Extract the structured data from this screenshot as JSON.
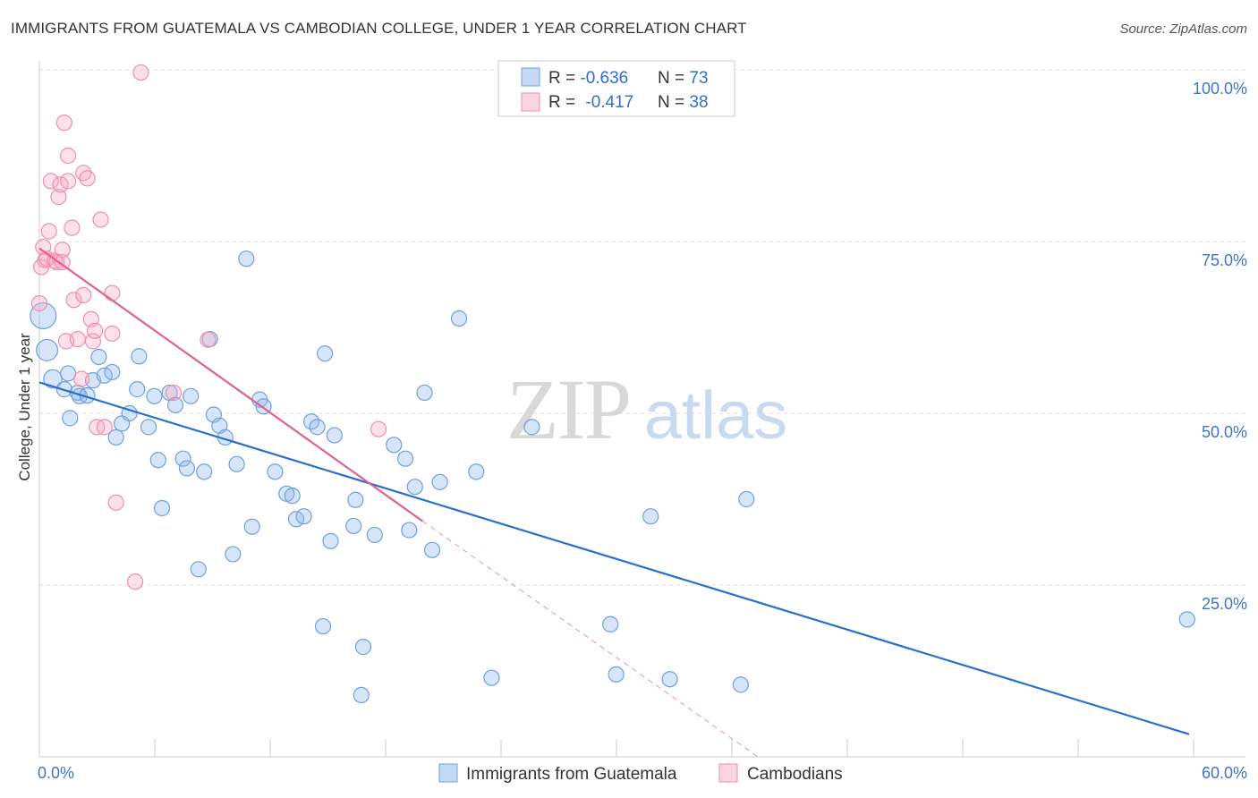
{
  "title": "IMMIGRANTS FROM GUATEMALA VS CAMBODIAN COLLEGE, UNDER 1 YEAR CORRELATION CHART",
  "source": "Source: ZipAtlas.com",
  "watermark": {
    "zip": "ZIP",
    "atlas": "atlas"
  },
  "colors": {
    "blue": "#6fa0e0",
    "blue_fill": "rgba(140,180,235,0.35)",
    "blue_line": "#2a6fcd",
    "pink": "#ee8fb0",
    "pink_fill": "rgba(245,170,195,0.35)",
    "pink_line": "#e0628f",
    "grid": "#dcdcdc",
    "tick_text": "#3d74c6"
  },
  "legend": {
    "rows": [
      {
        "r_label": "R = ",
        "r_value": "-0.636",
        "n_label": "N = ",
        "n_value": "73"
      },
      {
        "r_label": "R = ",
        "r_value": "-0.417",
        "n_label": "N = ",
        "n_value": "38"
      }
    ]
  },
  "bottom_legend": [
    "Immigrants from Guatemala",
    "Cambodians"
  ],
  "chart_data": {
    "type": "scatter",
    "title": "IMMIGRANTS FROM GUATEMALA VS CAMBODIAN COLLEGE, UNDER 1 YEAR CORRELATION CHART",
    "xlabel": "",
    "ylabel": "College, Under 1 year",
    "xlim": [
      0,
      60
    ],
    "ylim": [
      0,
      100
    ],
    "x_tick_labels": [
      "0.0%",
      "60.0%"
    ],
    "y_ticks": [
      25,
      50,
      75,
      100
    ],
    "y_tick_labels": [
      "25.0%",
      "50.0%",
      "75.0%",
      "100.0%"
    ],
    "grid": true,
    "series": [
      {
        "name": "Immigrants from Guatemala",
        "color": "#6fa0e0",
        "r": -0.636,
        "n": 73,
        "trend": {
          "x": [
            0,
            60
          ],
          "y": [
            54.5,
            3.3
          ]
        },
        "points": [
          [
            0.2,
            64.2,
            1.7
          ],
          [
            0.4,
            59.2,
            1.4
          ],
          [
            0.7,
            55.0,
            1.2
          ],
          [
            1.3,
            53.5,
            1.0
          ],
          [
            1.5,
            55.8,
            1.0
          ],
          [
            1.6,
            49.3,
            1.0
          ],
          [
            2.0,
            53.0,
            1.0
          ],
          [
            2.1,
            52.5,
            1.0
          ],
          [
            2.5,
            52.6,
            1.0
          ],
          [
            2.8,
            54.8,
            1.0
          ],
          [
            3.1,
            58.2,
            1.0
          ],
          [
            3.4,
            55.5,
            1.0
          ],
          [
            3.8,
            56.0,
            1.0
          ],
          [
            4.0,
            46.5,
            1.0
          ],
          [
            4.3,
            48.5,
            1.0
          ],
          [
            4.7,
            50.0,
            1.0
          ],
          [
            5.1,
            53.5,
            1.0
          ],
          [
            5.2,
            58.3,
            1.0
          ],
          [
            5.7,
            48.0,
            1.0
          ],
          [
            6.0,
            52.5,
            1.0
          ],
          [
            6.2,
            43.2,
            1.0
          ],
          [
            6.4,
            36.2,
            1.0
          ],
          [
            6.8,
            53.0,
            1.0
          ],
          [
            7.1,
            51.2,
            1.0
          ],
          [
            7.5,
            43.4,
            1.0
          ],
          [
            7.7,
            42.0,
            1.0
          ],
          [
            7.9,
            52.5,
            1.0
          ],
          [
            8.3,
            27.3,
            1.0
          ],
          [
            8.6,
            41.5,
            1.0
          ],
          [
            8.9,
            60.8,
            1.0
          ],
          [
            9.1,
            49.8,
            1.0
          ],
          [
            9.4,
            48.2,
            1.0
          ],
          [
            9.7,
            46.5,
            1.0
          ],
          [
            10.1,
            29.5,
            1.0
          ],
          [
            10.3,
            42.6,
            1.0
          ],
          [
            10.8,
            72.5,
            1.0
          ],
          [
            11.1,
            33.5,
            1.0
          ],
          [
            11.5,
            52.0,
            1.0
          ],
          [
            11.7,
            51.0,
            1.0
          ],
          [
            12.3,
            41.5,
            1.0
          ],
          [
            12.9,
            38.3,
            1.0
          ],
          [
            13.2,
            38.0,
            1.0
          ],
          [
            13.4,
            34.6,
            1.0
          ],
          [
            13.8,
            35.0,
            1.0
          ],
          [
            14.2,
            48.8,
            1.0
          ],
          [
            14.5,
            48.0,
            1.0
          ],
          [
            14.8,
            19.0,
            1.0
          ],
          [
            14.9,
            58.7,
            1.0
          ],
          [
            15.2,
            31.4,
            1.0
          ],
          [
            15.4,
            46.8,
            1.0
          ],
          [
            16.4,
            33.6,
            1.0
          ],
          [
            16.5,
            37.4,
            1.0
          ],
          [
            16.8,
            9.0,
            1.0
          ],
          [
            16.9,
            16.0,
            1.0
          ],
          [
            17.5,
            32.3,
            1.0
          ],
          [
            18.5,
            45.4,
            1.0
          ],
          [
            19.1,
            43.4,
            1.0
          ],
          [
            19.3,
            33.0,
            1.0
          ],
          [
            19.6,
            39.3,
            1.0
          ],
          [
            20.1,
            53.0,
            1.0
          ],
          [
            20.5,
            30.1,
            1.0
          ],
          [
            20.9,
            40.0,
            1.0
          ],
          [
            21.9,
            63.8,
            1.0
          ],
          [
            22.8,
            41.5,
            1.0
          ],
          [
            23.6,
            11.5,
            1.0
          ],
          [
            25.7,
            48.0,
            1.0
          ],
          [
            29.8,
            19.3,
            1.0
          ],
          [
            30.1,
            12.0,
            1.0
          ],
          [
            31.9,
            35.0,
            1.0
          ],
          [
            32.9,
            11.3,
            1.0
          ],
          [
            36.6,
            10.5,
            1.0
          ],
          [
            36.9,
            37.5,
            1.0
          ],
          [
            59.9,
            20.0,
            1.0
          ]
        ]
      },
      {
        "name": "Cambodians",
        "color": "#ee8fb0",
        "r": -0.417,
        "n": 38,
        "trend": {
          "x": [
            0,
            20
          ],
          "y": [
            74.0,
            34.3
          ]
        },
        "trend_dashed": {
          "x": [
            20,
            37.5
          ],
          "y": [
            34.3,
            0
          ]
        },
        "points": [
          [
            0.0,
            66.0,
            1.0
          ],
          [
            0.1,
            71.3,
            1.0
          ],
          [
            0.2,
            74.2,
            1.0
          ],
          [
            0.3,
            72.3,
            1.0
          ],
          [
            0.4,
            72.5,
            1.0
          ],
          [
            0.5,
            76.5,
            1.0
          ],
          [
            0.6,
            83.8,
            1.0
          ],
          [
            0.8,
            72.2,
            1.0
          ],
          [
            0.9,
            72.0,
            1.0
          ],
          [
            1.0,
            81.5,
            1.0
          ],
          [
            1.1,
            83.3,
            1.0
          ],
          [
            1.2,
            73.8,
            1.0
          ],
          [
            1.2,
            72.0,
            1.0
          ],
          [
            1.3,
            92.3,
            1.0
          ],
          [
            1.4,
            60.5,
            1.0
          ],
          [
            1.5,
            83.8,
            1.0
          ],
          [
            1.5,
            87.5,
            1.0
          ],
          [
            1.7,
            77.0,
            1.0
          ],
          [
            1.8,
            66.5,
            1.0
          ],
          [
            2.0,
            60.8,
            1.0
          ],
          [
            2.2,
            55.0,
            1.0
          ],
          [
            2.3,
            67.2,
            1.0
          ],
          [
            2.3,
            85.0,
            1.0
          ],
          [
            2.5,
            84.2,
            1.0
          ],
          [
            2.7,
            63.7,
            1.0
          ],
          [
            2.8,
            60.5,
            1.0
          ],
          [
            2.9,
            62.0,
            1.0
          ],
          [
            3.0,
            48.0,
            1.0
          ],
          [
            3.2,
            78.2,
            1.0
          ],
          [
            3.4,
            48.0,
            1.0
          ],
          [
            3.8,
            67.5,
            1.0
          ],
          [
            3.8,
            61.6,
            1.0
          ],
          [
            4.0,
            37.0,
            1.0
          ],
          [
            5.0,
            25.5,
            1.0
          ],
          [
            5.3,
            99.6,
            1.0
          ],
          [
            7.0,
            53.0,
            1.0
          ],
          [
            8.8,
            60.7,
            1.0
          ],
          [
            17.7,
            47.7,
            1.0
          ]
        ]
      }
    ]
  }
}
